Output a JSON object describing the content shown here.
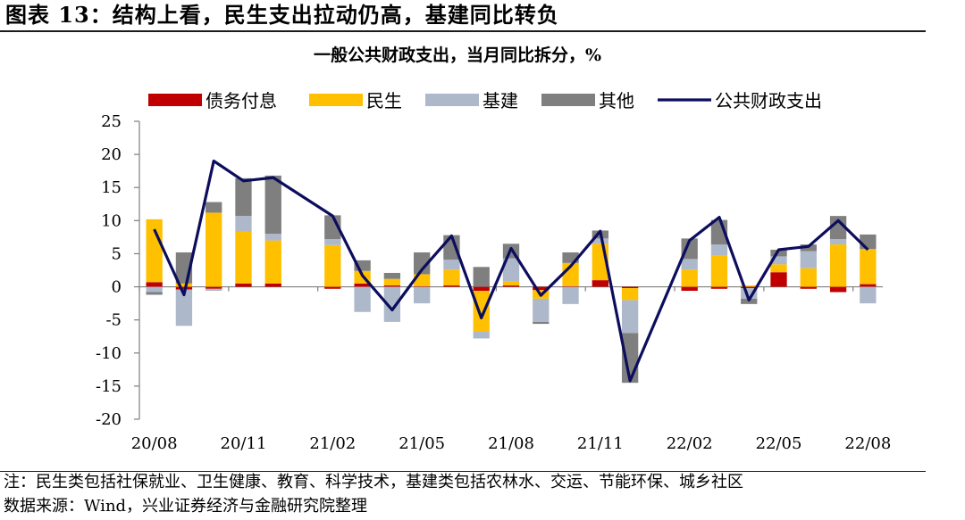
{
  "figure": {
    "title": "图表 13：结构上看，民生支出拉动仍高，基建同比转负",
    "note": "注：民生类包括社保就业、卫生健康、教育、科学技术，基建类包括农林水、交运、节能环保、城乡社区",
    "source": "数据来源：Wind，兴业证券经济与金融研究院整理"
  },
  "chart_data": {
    "type": "bar",
    "stacked": true,
    "title": "一般公共财政支出，当月同比拆分，%",
    "xlabel": "",
    "ylabel": "",
    "ylim": [
      -20,
      25
    ],
    "yticks": [
      -20,
      -15,
      -10,
      -5,
      0,
      5,
      10,
      15,
      20,
      25
    ],
    "grid": false,
    "legend_position": "top",
    "categories": [
      "20/08",
      "20/09",
      "20/10",
      "20/11",
      "20/12",
      "21/01",
      "21/02",
      "21/03",
      "21/04",
      "21/05",
      "21/06",
      "21/07",
      "21/08",
      "21/09",
      "21/10",
      "21/11",
      "21/12",
      "22/01",
      "22/02",
      "22/03",
      "22/04",
      "22/05",
      "22/06",
      "22/07",
      "22/08"
    ],
    "x_tick_labels": [
      "20/08",
      "",
      "",
      "20/11",
      "",
      "",
      "21/02",
      "",
      "",
      "21/05",
      "",
      "",
      "21/08",
      "",
      "",
      "21/11",
      "",
      "",
      "22/02",
      "",
      "",
      "22/05",
      "",
      "",
      "22/08"
    ],
    "series": [
      {
        "name": "债务付息",
        "kind": "bar",
        "color": "#c00000",
        "values": [
          0.7,
          -0.4,
          -0.3,
          0.5,
          0.5,
          null,
          -0.3,
          0.5,
          0.2,
          0.1,
          0.2,
          -0.6,
          0.2,
          -0.5,
          0.1,
          1.0,
          -0.2,
          null,
          -0.6,
          -0.3,
          -0.2,
          2.2,
          -0.3,
          -0.8,
          0.4
        ]
      },
      {
        "name": "民生",
        "kind": "bar",
        "color": "#ffc000",
        "values": [
          9.5,
          0.5,
          11.2,
          7.8,
          6.5,
          null,
          6.3,
          1.9,
          1.0,
          1.8,
          2.4,
          -6.2,
          0.6,
          -1.3,
          3.5,
          5.5,
          -1.8,
          null,
          2.6,
          4.7,
          0.2,
          1.2,
          2.8,
          6.4,
          5.3
        ]
      },
      {
        "name": "基建",
        "kind": "bar",
        "color": "#adb9ca",
        "values": [
          -0.8,
          -5.5,
          -0.3,
          2.4,
          1.0,
          null,
          0.9,
          -3.8,
          -5.3,
          -2.5,
          1.5,
          -1.0,
          3.5,
          -3.5,
          -2.6,
          0.8,
          -5.0,
          null,
          1.6,
          1.7,
          -1.6,
          1.2,
          2.6,
          0.8,
          -2.5
        ]
      },
      {
        "name": "其他",
        "kind": "bar",
        "color": "#7f7f7f",
        "values": [
          -0.4,
          4.7,
          1.6,
          5.7,
          8.8,
          null,
          3.6,
          1.6,
          0.9,
          3.3,
          3.7,
          3.0,
          2.2,
          -0.3,
          1.6,
          1.2,
          -7.5,
          null,
          3.1,
          3.7,
          -0.8,
          1.0,
          1.0,
          3.5,
          2.2
        ]
      },
      {
        "name": "公共财政支出",
        "kind": "line",
        "color": "#0d0d5e",
        "values": [
          8.7,
          -1.2,
          19.0,
          16.0,
          16.5,
          null,
          10.7,
          1.7,
          -3.5,
          2.6,
          7.7,
          -4.7,
          5.8,
          -1.3,
          3.1,
          8.4,
          -14.2,
          null,
          7.0,
          10.5,
          -2.0,
          5.6,
          6.1,
          10.0,
          5.6
        ]
      }
    ]
  }
}
